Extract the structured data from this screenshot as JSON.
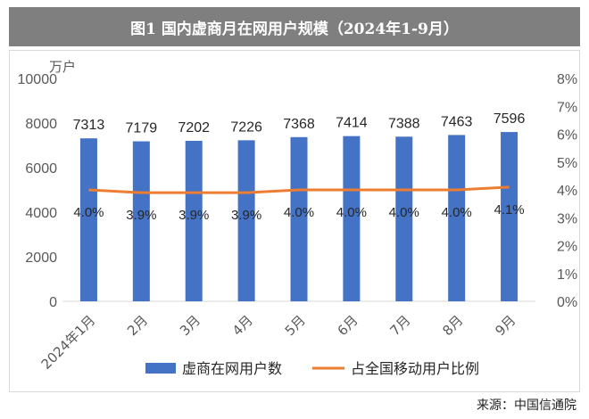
{
  "header": {
    "title": "图1  国内虚商月在网用户规模（2024年1-9月）"
  },
  "source_label": "来源：中国信通院",
  "colors": {
    "bar": "#4472c4",
    "line": "#ed7d31",
    "title_bg": "#7f7f7f",
    "axis_text": "#595959"
  },
  "chart_data": {
    "type": "bar",
    "categories": [
      "2024年1月",
      "2月",
      "3月",
      "4月",
      "5月",
      "6月",
      "7月",
      "8月",
      "9月"
    ],
    "series": [
      {
        "name": "虚商在网用户数",
        "type": "bar",
        "axis": "left",
        "values": [
          7313,
          7179,
          7202,
          7226,
          7368,
          7414,
          7388,
          7463,
          7596
        ],
        "labels": [
          "7313",
          "7179",
          "7202",
          "7226",
          "7368",
          "7414",
          "7388",
          "7463",
          "7596"
        ]
      },
      {
        "name": "占全国移动用户比例",
        "type": "line",
        "axis": "right",
        "values": [
          4.0,
          3.9,
          3.9,
          3.9,
          4.0,
          4.0,
          4.0,
          4.0,
          4.1
        ],
        "labels": [
          "4.0%",
          "3.9%",
          "3.9%",
          "3.9%",
          "4.0%",
          "4.0%",
          "4.0%",
          "4.0%",
          "4.1%"
        ]
      }
    ],
    "y_left": {
      "unit": "万户",
      "min": 0,
      "max": 10000,
      "ticks": [
        "0",
        "2000",
        "4000",
        "6000",
        "8000",
        "10000"
      ]
    },
    "y_right": {
      "min": 0,
      "max": 8,
      "ticks": [
        "0%",
        "1%",
        "2%",
        "3%",
        "4%",
        "5%",
        "6%",
        "7%",
        "8%"
      ]
    },
    "legend_position": "bottom",
    "grid": false
  }
}
